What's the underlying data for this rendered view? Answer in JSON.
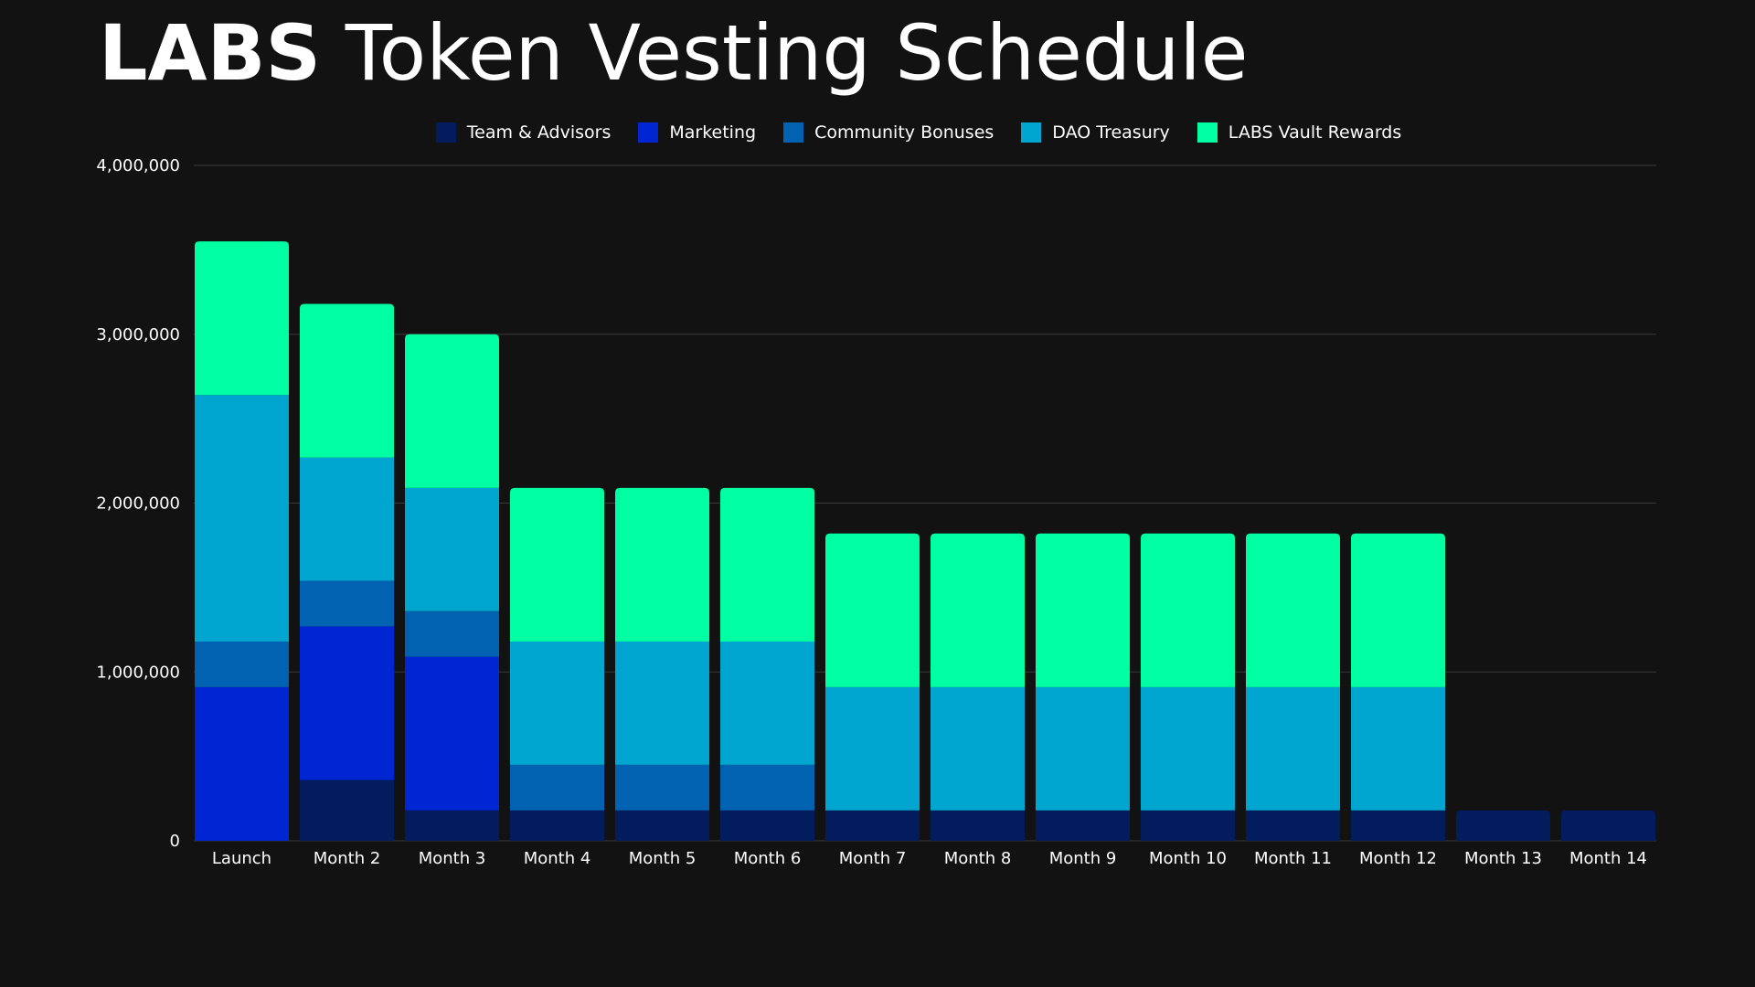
{
  "header": {
    "title_bold": "LABS",
    "title_rest": "Token Vesting Schedule"
  },
  "chart_data": {
    "type": "bar",
    "stacked": true,
    "title": "LABS Token Vesting Schedule",
    "categories": [
      "Launch",
      "Month 2",
      "Month 3",
      "Month 4",
      "Month 5",
      "Month 6",
      "Month 7",
      "Month 8",
      "Month 9",
      "Month 10",
      "Month 11",
      "Month 12",
      "Month 13",
      "Month 14"
    ],
    "series": [
      {
        "name": "Team & Advisors",
        "color": "#021C5E",
        "values": [
          0,
          360000,
          180000,
          180000,
          180000,
          180000,
          180000,
          180000,
          180000,
          180000,
          180000,
          180000,
          180000,
          180000
        ]
      },
      {
        "name": "Marketing",
        "color": "#0026D4",
        "values": [
          910000,
          910000,
          910000,
          0,
          0,
          0,
          0,
          0,
          0,
          0,
          0,
          0,
          0,
          0
        ]
      },
      {
        "name": "Community Bonuses",
        "color": "#0062B0",
        "values": [
          270000,
          270000,
          270000,
          270000,
          270000,
          270000,
          0,
          0,
          0,
          0,
          0,
          0,
          0,
          0
        ]
      },
      {
        "name": "DAO Treasury",
        "color": "#00A6CF",
        "values": [
          1460000,
          730000,
          730000,
          730000,
          730000,
          730000,
          730000,
          730000,
          730000,
          730000,
          730000,
          730000,
          0,
          0
        ]
      },
      {
        "name": "LABS Vault Rewards",
        "color": "#00FFA3",
        "values": [
          910000,
          910000,
          910000,
          910000,
          910000,
          910000,
          910000,
          910000,
          910000,
          910000,
          910000,
          910000,
          0,
          0
        ]
      }
    ],
    "ylim": [
      0,
      4000000
    ],
    "yticks": [
      0,
      1000000,
      2000000,
      3000000,
      4000000
    ],
    "ytick_labels": [
      "0",
      "1,000,000",
      "2,000,000",
      "3,000,000",
      "4,000,000"
    ],
    "grid": true,
    "legend_position": "top-center",
    "gridline_color": "#3a3a3a"
  }
}
